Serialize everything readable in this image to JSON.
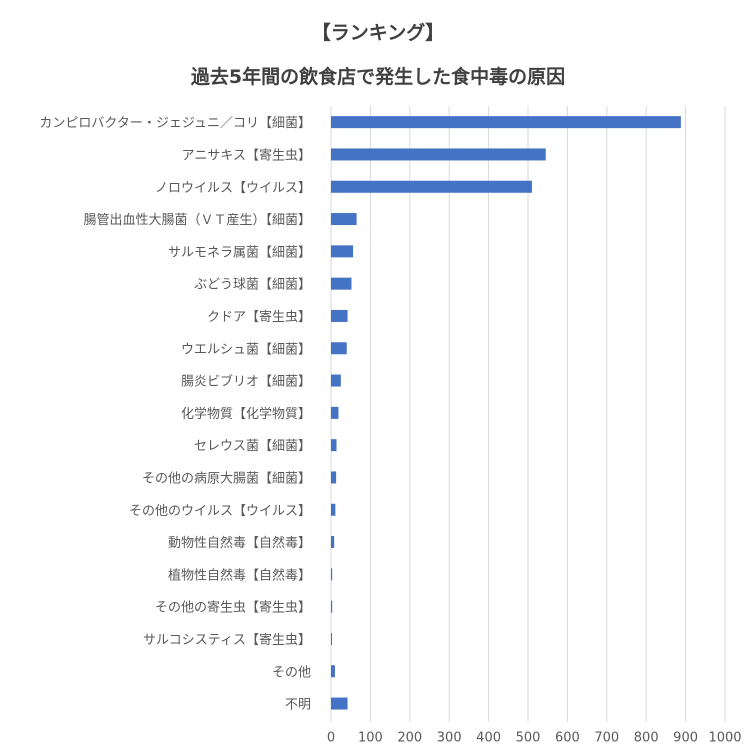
{
  "chart_data": {
    "type": "bar",
    "orientation": "horizontal",
    "title": "【ランキング】",
    "subtitle": "過去5年間の飲食店で発生した食中毒の原因",
    "categories": [
      "カンピロバクター・ジェジュニ／コリ【細菌】",
      "アニサキス【寄生虫】",
      "ノロウイルス【ウイルス】",
      "腸管出血性大腸菌（ＶＴ産生）【細菌】",
      "サルモネラ属菌【細菌】",
      "ぶどう球菌【細菌】",
      "クドア【寄生虫】",
      "ウエルシュ菌【細菌】",
      "腸炎ビブリオ【細菌】",
      "化学物質【化学物質】",
      "セレウス菌【細菌】",
      "その他の病原大腸菌【細菌】",
      "その他のウイルス【ウイルス】",
      "動物性自然毒【自然毒】",
      "植物性自然毒【自然毒】",
      "その他の寄生虫【寄生虫】",
      "サルコシスティス【寄生虫】",
      "その他",
      "不明"
    ],
    "values": [
      888,
      545,
      510,
      65,
      56,
      52,
      42,
      40,
      25,
      19,
      14,
      13,
      11,
      8,
      3,
      3,
      2,
      10,
      42
    ],
    "xlim": [
      0,
      1000
    ],
    "xticks": [
      "0",
      "100",
      "200",
      "300",
      "400",
      "500",
      "600",
      "700",
      "800",
      "900",
      "1000"
    ],
    "grid": true,
    "legend": "none",
    "bar_color": "#4472c4"
  }
}
